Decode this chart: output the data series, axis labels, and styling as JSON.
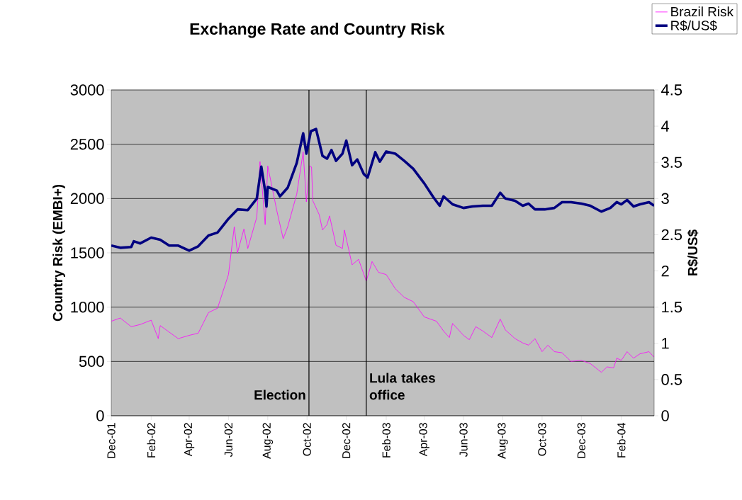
{
  "chart_data": {
    "type": "line",
    "title": "Exchange Rate and Country Risk",
    "ylabel": "Country Risk (EMBI+)",
    "y2label": "R$/US$",
    "xlim": [
      "2001-12-01",
      "2004-03-23"
    ],
    "xticks": [
      {
        "value": "2001-12-01",
        "label": "Dec-01"
      },
      {
        "value": "2002-02-01",
        "label": "Feb-02"
      },
      {
        "value": "2002-04-01",
        "label": "Apr-02"
      },
      {
        "value": "2002-06-01",
        "label": "Jun-02"
      },
      {
        "value": "2002-08-01",
        "label": "Aug-02"
      },
      {
        "value": "2002-10-01",
        "label": "Oct-02"
      },
      {
        "value": "2002-12-01",
        "label": "Dec-02"
      },
      {
        "value": "2003-02-01",
        "label": "Feb-03"
      },
      {
        "value": "2003-04-01",
        "label": "Apr-03"
      },
      {
        "value": "2003-06-01",
        "label": "Jun-03"
      },
      {
        "value": "2003-08-01",
        "label": "Aug-03"
      },
      {
        "value": "2003-10-01",
        "label": "Oct-03"
      },
      {
        "value": "2003-12-01",
        "label": "Dec-03"
      },
      {
        "value": "2004-02-01",
        "label": "Feb-04"
      }
    ],
    "ylim": [
      0,
      3000
    ],
    "yticks": [
      0,
      500,
      1000,
      1500,
      2000,
      2500,
      3000
    ],
    "y2lim": [
      0,
      4.5
    ],
    "y2ticks": [
      0,
      0.5,
      1,
      1.5,
      2,
      2.5,
      3,
      3.5,
      4,
      4.5
    ],
    "grid": "y",
    "legend": "top right",
    "ref_lines": [
      {
        "axis": "x",
        "value": "2002-10-04",
        "label": "Election",
        "color": "#000000"
      },
      {
        "axis": "x",
        "value": "2003-01-01",
        "label": "Lula takes office",
        "color": "#000000"
      }
    ],
    "series": [
      {
        "name": "Brazil Risk",
        "color": "#ff00ff",
        "x": [
          "2001-12-01",
          "2001-12-15",
          "2002-01-01",
          "2002-01-15",
          "2002-02-01",
          "2002-02-12",
          "2002-02-15",
          "2002-03-01",
          "2002-03-15",
          "2002-04-01",
          "2002-04-15",
          "2002-05-01",
          "2002-05-15",
          "2002-06-01",
          "2002-06-10",
          "2002-06-15",
          "2002-06-25",
          "2002-07-01",
          "2002-07-15",
          "2002-07-20",
          "2002-07-28",
          "2002-08-01",
          "2002-08-15",
          "2002-08-25",
          "2002-09-01",
          "2002-09-15",
          "2002-09-25",
          "2002-09-30",
          "2002-10-05",
          "2002-10-08",
          "2002-10-10",
          "2002-10-20",
          "2002-10-25",
          "2002-11-01",
          "2002-11-05",
          "2002-11-15",
          "2002-11-25",
          "2002-11-28",
          "2002-12-10",
          "2002-12-20",
          "2003-01-01",
          "2003-01-10",
          "2003-01-20",
          "2003-02-01",
          "2003-02-15",
          "2003-03-01",
          "2003-03-15",
          "2003-04-01",
          "2003-04-20",
          "2003-05-01",
          "2003-05-10",
          "2003-05-15",
          "2003-06-01",
          "2003-06-10",
          "2003-06-20",
          "2003-07-01",
          "2003-07-15",
          "2003-07-28",
          "2003-08-05",
          "2003-08-20",
          "2003-09-01",
          "2003-09-10",
          "2003-09-20",
          "2003-10-01",
          "2003-10-10",
          "2003-10-20",
          "2003-11-01",
          "2003-11-15",
          "2003-12-01",
          "2003-12-15",
          "2004-01-01",
          "2004-01-10",
          "2004-01-20",
          "2004-01-25",
          "2004-02-01",
          "2004-02-10",
          "2004-02-20",
          "2004-03-01",
          "2004-03-15",
          "2004-03-23"
        ],
        "values": [
          870,
          900,
          820,
          840,
          880,
          710,
          830,
          770,
          710,
          740,
          760,
          950,
          990,
          1300,
          1740,
          1500,
          1720,
          1540,
          1830,
          2340,
          1760,
          2300,
          1890,
          1630,
          1740,
          2040,
          2430,
          1970,
          2300,
          2290,
          1980,
          1850,
          1710,
          1760,
          1840,
          1570,
          1540,
          1710,
          1390,
          1440,
          1240,
          1420,
          1320,
          1300,
          1170,
          1090,
          1050,
          910,
          870,
          780,
          720,
          850,
          740,
          700,
          820,
          780,
          720,
          890,
          790,
          710,
          670,
          650,
          710,
          590,
          650,
          590,
          580,
          500,
          510,
          480,
          400,
          450,
          440,
          530,
          510,
          590,
          530,
          570,
          590,
          540
        ]
      },
      {
        "name": "R$/US$",
        "color": "#000080",
        "axis": "y2",
        "x": [
          "2001-12-01",
          "2001-12-15",
          "2002-01-01",
          "2002-01-05",
          "2002-01-15",
          "2002-02-01",
          "2002-02-15",
          "2002-03-01",
          "2002-03-15",
          "2002-04-01",
          "2002-04-15",
          "2002-05-01",
          "2002-05-15",
          "2002-06-01",
          "2002-06-15",
          "2002-07-01",
          "2002-07-15",
          "2002-07-22",
          "2002-07-28",
          "2002-07-30",
          "2002-08-01",
          "2002-08-15",
          "2002-08-20",
          "2002-09-01",
          "2002-09-15",
          "2002-09-25",
          "2002-09-30",
          "2002-10-07",
          "2002-10-15",
          "2002-10-25",
          "2002-11-01",
          "2002-11-08",
          "2002-11-15",
          "2002-11-25",
          "2002-12-01",
          "2002-12-10",
          "2002-12-18",
          "2002-12-28",
          "2003-01-03",
          "2003-01-15",
          "2003-01-22",
          "2003-02-01",
          "2003-02-15",
          "2003-03-01",
          "2003-03-15",
          "2003-04-01",
          "2003-04-15",
          "2003-04-25",
          "2003-05-01",
          "2003-05-15",
          "2003-06-01",
          "2003-06-15",
          "2003-07-01",
          "2003-07-15",
          "2003-07-28",
          "2003-08-05",
          "2003-08-20",
          "2003-09-01",
          "2003-09-10",
          "2003-09-20",
          "2003-10-05",
          "2003-10-20",
          "2003-11-01",
          "2003-11-15",
          "2003-12-01",
          "2003-12-15",
          "2004-01-01",
          "2004-01-15",
          "2004-01-25",
          "2004-02-01",
          "2004-02-10",
          "2004-02-20",
          "2004-03-01",
          "2004-03-15",
          "2004-03-23"
        ],
        "values": [
          2.35,
          2.32,
          2.33,
          2.41,
          2.38,
          2.46,
          2.43,
          2.35,
          2.35,
          2.28,
          2.34,
          2.49,
          2.53,
          2.72,
          2.85,
          2.84,
          3.0,
          3.44,
          3.1,
          2.89,
          3.16,
          3.11,
          3.03,
          3.15,
          3.49,
          3.9,
          3.62,
          3.93,
          3.96,
          3.59,
          3.55,
          3.67,
          3.52,
          3.62,
          3.8,
          3.46,
          3.54,
          3.34,
          3.29,
          3.64,
          3.51,
          3.65,
          3.62,
          3.52,
          3.41,
          3.21,
          3.02,
          2.9,
          3.03,
          2.92,
          2.87,
          2.89,
          2.9,
          2.9,
          3.08,
          3.0,
          2.97,
          2.9,
          2.93,
          2.85,
          2.85,
          2.87,
          2.95,
          2.95,
          2.93,
          2.9,
          2.82,
          2.87,
          2.95,
          2.92,
          2.98,
          2.89,
          2.92,
          2.95,
          2.9
        ]
      }
    ]
  }
}
